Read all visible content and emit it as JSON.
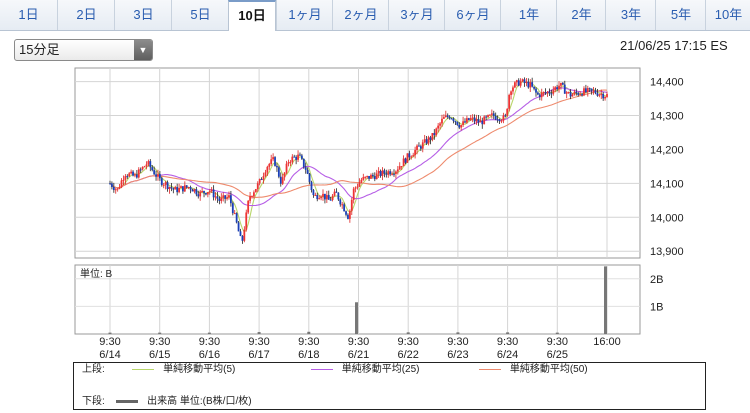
{
  "tabs": [
    {
      "label": "1日"
    },
    {
      "label": "2日"
    },
    {
      "label": "3日"
    },
    {
      "label": "5日"
    },
    {
      "label": "10日",
      "active": true
    },
    {
      "label": "1ヶ月"
    },
    {
      "label": "2ヶ月"
    },
    {
      "label": "3ヶ月"
    },
    {
      "label": "6ヶ月"
    },
    {
      "label": "1年"
    },
    {
      "label": "2年"
    },
    {
      "label": "3年"
    },
    {
      "label": "5年"
    },
    {
      "label": "10年"
    }
  ],
  "interval_select": {
    "value": "15分足"
  },
  "timestamp": "21/06/25 17:15 ES",
  "chart_data": {
    "type": "candlestick",
    "price_axis": {
      "ticks": [
        "13,900",
        "14,000",
        "14,100",
        "14,200",
        "14,300",
        "14,400"
      ],
      "range": [
        13880,
        14440
      ]
    },
    "volume_axis": {
      "label": "単位: B",
      "ticks": [
        "1B",
        "2B"
      ],
      "range": [
        0,
        2.5
      ]
    },
    "x_ticks": [
      {
        "time": "9:30",
        "date": "6/14"
      },
      {
        "time": "9:30",
        "date": "6/15"
      },
      {
        "time": "9:30",
        "date": "6/16"
      },
      {
        "time": "9:30",
        "date": "6/17"
      },
      {
        "time": "9:30",
        "date": "6/18"
      },
      {
        "time": "9:30",
        "date": "6/21"
      },
      {
        "time": "9:30",
        "date": "6/22"
      },
      {
        "time": "9:30",
        "date": "6/23"
      },
      {
        "time": "9:30",
        "date": "6/24"
      },
      {
        "time": "9:30",
        "date": "6/25"
      },
      {
        "time": "16:00",
        "date": ""
      }
    ],
    "price_path": [
      [
        0,
        14100
      ],
      [
        0.15,
        14080
      ],
      [
        0.3,
        14130
      ],
      [
        0.5,
        14120
      ],
      [
        0.75,
        14160
      ],
      [
        1,
        14110
      ],
      [
        1.3,
        14080
      ],
      [
        1.6,
        14090
      ],
      [
        1.8,
        14070
      ],
      [
        2,
        14080
      ],
      [
        2.2,
        14050
      ],
      [
        2.4,
        14060
      ],
      [
        2.55,
        13980
      ],
      [
        2.65,
        13920
      ],
      [
        2.8,
        14060
      ],
      [
        3,
        14100
      ],
      [
        3.15,
        14150
      ],
      [
        3.3,
        14170
      ],
      [
        3.45,
        14100
      ],
      [
        3.6,
        14170
      ],
      [
        3.8,
        14180
      ],
      [
        3.95,
        14140
      ],
      [
        4.1,
        14060
      ],
      [
        4.25,
        14070
      ],
      [
        4.4,
        14050
      ],
      [
        4.55,
        14070
      ],
      [
        4.7,
        14030
      ],
      [
        4.8,
        14000
      ],
      [
        4.9,
        14080
      ],
      [
        5.05,
        14110
      ],
      [
        5.25,
        14120
      ],
      [
        5.5,
        14130
      ],
      [
        5.75,
        14140
      ],
      [
        6,
        14180
      ],
      [
        6.25,
        14210
      ],
      [
        6.5,
        14240
      ],
      [
        6.7,
        14290
      ],
      [
        6.85,
        14300
      ],
      [
        7.05,
        14270
      ],
      [
        7.25,
        14290
      ],
      [
        7.45,
        14280
      ],
      [
        7.7,
        14300
      ],
      [
        7.95,
        14290
      ],
      [
        8.05,
        14380
      ],
      [
        8.25,
        14400
      ],
      [
        8.45,
        14390
      ],
      [
        8.6,
        14360
      ],
      [
        8.85,
        14370
      ],
      [
        9.05,
        14390
      ],
      [
        9.25,
        14360
      ],
      [
        9.5,
        14370
      ],
      [
        9.75,
        14370
      ],
      [
        9.95,
        14360
      ]
    ],
    "volume": [
      {
        "x": 0,
        "v": 0.05
      },
      {
        "x": 1,
        "v": 0.05
      },
      {
        "x": 2,
        "v": 0.05
      },
      {
        "x": 3,
        "v": 0.07
      },
      {
        "x": 4,
        "v": 0.08
      },
      {
        "x": 4.96,
        "v": 1.15
      },
      {
        "x": 6,
        "v": 0.06
      },
      {
        "x": 7,
        "v": 0.06
      },
      {
        "x": 8,
        "v": 0.06
      },
      {
        "x": 9,
        "v": 0.05
      },
      {
        "x": 9.97,
        "v": 2.45
      }
    ],
    "series": [
      {
        "name": "単純移動平均(5)",
        "color": "#b8d66a",
        "kind": "ma",
        "period": 5
      },
      {
        "name": "単純移動平均(25)",
        "color": "#b65ee6",
        "kind": "ma",
        "period": 25
      },
      {
        "name": "単純移動平均(50)",
        "color": "#ee8a6d",
        "kind": "ma",
        "period": 50
      }
    ],
    "legend": {
      "upper_label": "上段:",
      "lower_label": "下段:",
      "lower_item": "出来高 単位:(B株/口/枚)"
    }
  }
}
